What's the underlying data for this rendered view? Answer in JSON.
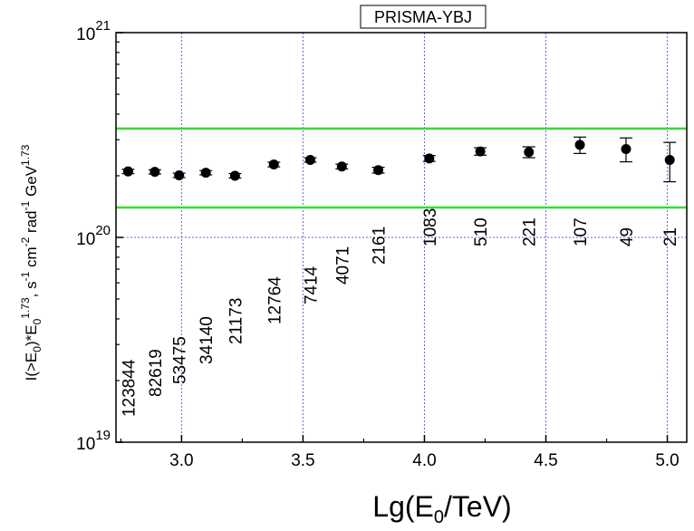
{
  "chart_data": {
    "type": "scatter",
    "title": "PRISMA-YBJ",
    "xlabel": {
      "base": "Lg(E",
      "sub": "0",
      "tail": "/TeV)"
    },
    "ylabel": {
      "p1": "I(>E",
      "p1_sub": "0",
      "p2": ")*E",
      "p2_sub": "0",
      "p2_sup": "1.73",
      "p3": ", s",
      "p3_sup": "-1",
      "p4": " cm",
      "p4_sup": "-2",
      "p5": " rad",
      "p5_sup": "-1",
      "p6": " GeV",
      "p6_sup": "1.73"
    },
    "xlim": [
      2.73,
      5.08
    ],
    "ylim": [
      1e+19,
      1e+21
    ],
    "y_scale": "log",
    "x_ticks": [
      "3.0",
      "3.5",
      "4.0",
      "4.5",
      "5.0"
    ],
    "x_tick_values": [
      3.0,
      3.5,
      4.0,
      4.5,
      5.0
    ],
    "y_ticks": [
      {
        "value": 1e+19,
        "base": "10",
        "exp": "19"
      },
      {
        "value": 1e+20,
        "base": "10",
        "exp": "20"
      },
      {
        "value": 1e+21,
        "base": "10",
        "exp": "21"
      }
    ],
    "x": [
      2.78,
      2.89,
      2.99,
      3.1,
      3.22,
      3.38,
      3.53,
      3.66,
      3.81,
      4.02,
      4.23,
      4.43,
      4.64,
      4.83,
      5.01
    ],
    "y": [
      2.1e+20,
      2.09e+20,
      2.01e+20,
      2.07e+20,
      2e+20,
      2.27e+20,
      2.39e+20,
      2.22e+20,
      2.13e+20,
      2.43e+20,
      2.63e+20,
      2.61e+20,
      2.83e+20,
      2.7e+20,
      2.39e+20
    ],
    "y_err": [
      5e+18,
      5e+18,
      5e+18,
      5e+18,
      5e+18,
      6e+18,
      6e+18,
      6e+18,
      7e+18,
      8e+18,
      1.1e+19,
      1.6e+19,
      2.6e+19,
      3.6e+19,
      5.2e+19
    ],
    "counts": [
      "123844",
      "82619",
      "53475",
      "34140",
      "21173",
      "12764",
      "7414",
      "4071",
      "2161",
      "1083",
      "510",
      "221",
      "107",
      "49",
      "21"
    ],
    "reference_lines": [
      3.4e+20,
      1.4e+20
    ],
    "reference_line_color": "#33dd33",
    "grid_color": "#6666cc",
    "grid_x_values": [
      3.0,
      3.5,
      4.0,
      4.5,
      5.0
    ],
    "grid_y_values": [
      1e+20
    ]
  }
}
